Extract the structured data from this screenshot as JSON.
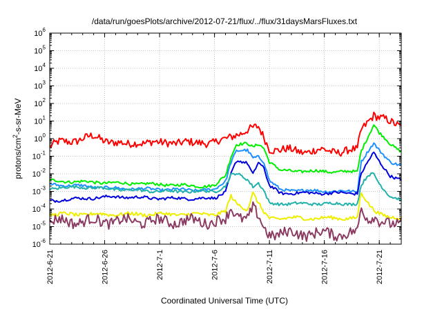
{
  "chart_data": {
    "type": "line",
    "title": "/data/run/goesPlots/archive/2012-07-21/flux/../flux/31daysMarsFluxes.txt",
    "xlabel": "Coordinated Universal Time (UTC)",
    "ylabel_base": "protons/cm",
    "ylabel_sup": "2",
    "ylabel_rest": "-s-sr-MeV",
    "y_scale": "log",
    "ylim": [
      1e-06,
      1000000.0
    ],
    "y_ticks": [
      {
        "value": 1e-06,
        "base": "10",
        "exp": "-6"
      },
      {
        "value": 1e-05,
        "base": "10",
        "exp": "-5"
      },
      {
        "value": 0.0001,
        "base": "10",
        "exp": "-4"
      },
      {
        "value": 0.001,
        "base": "10",
        "exp": "-3"
      },
      {
        "value": 0.01,
        "base": "10",
        "exp": "-2"
      },
      {
        "value": 0.1,
        "base": "10",
        "exp": "-1"
      },
      {
        "value": 1,
        "base": "10",
        "exp": "0"
      },
      {
        "value": 10,
        "base": "10",
        "exp": "1"
      },
      {
        "value": 100,
        "base": "10",
        "exp": "2"
      },
      {
        "value": 1000,
        "base": "10",
        "exp": "3"
      },
      {
        "value": 10000,
        "base": "10",
        "exp": "4"
      },
      {
        "value": 100000,
        "base": "10",
        "exp": "5"
      },
      {
        "value": 1000000,
        "base": "10",
        "exp": "6"
      }
    ],
    "xlim": [
      "2012-06-21",
      "2012-07-23"
    ],
    "x_ticks": [
      "2012-6-21",
      "2012-6-26",
      "2012-7-1",
      "2012-7-6",
      "2012-7-11",
      "2012-7-16",
      "2012-7-21"
    ],
    "grid": true,
    "series": [
      {
        "color": "#ff0000",
        "noise": 0.22,
        "points": [
          [
            "2012-06-21",
            0.35
          ],
          [
            "2012-06-22",
            0.6
          ],
          [
            "2012-06-23",
            0.8
          ],
          [
            "2012-06-24",
            1.0
          ],
          [
            "2012-06-25",
            1.2
          ],
          [
            "2012-06-26",
            0.9
          ],
          [
            "2012-06-27",
            0.6
          ],
          [
            "2012-06-28",
            0.4
          ],
          [
            "2012-06-29",
            0.7
          ],
          [
            "2012-06-30",
            0.6
          ],
          [
            "2012-07-01",
            0.5
          ],
          [
            "2012-07-02",
            0.7
          ],
          [
            "2012-07-03",
            0.6
          ],
          [
            "2012-07-04",
            0.5
          ],
          [
            "2012-07-05",
            0.7
          ],
          [
            "2012-07-06",
            0.6
          ],
          [
            "2012-07-07",
            0.8
          ],
          [
            "2012-07-08",
            2.0
          ],
          [
            "2012-07-09",
            3.0
          ],
          [
            "2012-07-10",
            4.0
          ],
          [
            "2012-07-10T12:00",
            1.2
          ],
          [
            "2012-07-11",
            0.3
          ],
          [
            "2012-07-12",
            0.22
          ],
          [
            "2012-07-14",
            0.2
          ],
          [
            "2012-07-16",
            0.2
          ],
          [
            "2012-07-18",
            0.2
          ],
          [
            "2012-07-19",
            0.2
          ],
          [
            "2012-07-19T08:00",
            3.0
          ],
          [
            "2012-07-20",
            12.0
          ],
          [
            "2012-07-20T12:00",
            25.0
          ],
          [
            "2012-07-21",
            15.0
          ],
          [
            "2012-07-22",
            8.0
          ],
          [
            "2012-07-23",
            6.0
          ]
        ]
      },
      {
        "color": "#00ee00",
        "noise": 0.08,
        "points": [
          [
            "2012-06-21",
            0.004
          ],
          [
            "2012-06-24",
            0.0035
          ],
          [
            "2012-06-27",
            0.003
          ],
          [
            "2012-07-01",
            0.0025
          ],
          [
            "2012-07-05",
            0.002
          ],
          [
            "2012-07-06",
            0.002
          ],
          [
            "2012-07-07",
            0.008
          ],
          [
            "2012-07-07T12:00",
            0.1
          ],
          [
            "2012-07-08",
            0.5
          ],
          [
            "2012-07-09",
            0.5
          ],
          [
            "2012-07-09T12:00",
            0.3
          ],
          [
            "2012-07-10",
            0.5
          ],
          [
            "2012-07-10T12:00",
            0.3
          ],
          [
            "2012-07-11",
            0.05
          ],
          [
            "2012-07-12",
            0.015
          ],
          [
            "2012-07-18",
            0.013
          ],
          [
            "2012-07-19",
            0.013
          ],
          [
            "2012-07-19T08:00",
            0.2
          ],
          [
            "2012-07-20",
            1.5
          ],
          [
            "2012-07-20T12:00",
            6.0
          ],
          [
            "2012-07-21",
            2.0
          ],
          [
            "2012-07-22",
            0.5
          ],
          [
            "2012-07-23",
            0.2
          ]
        ]
      },
      {
        "color": "#1e90ff",
        "noise": 0.08,
        "points": [
          [
            "2012-06-21",
            0.0025
          ],
          [
            "2012-06-24",
            0.002
          ],
          [
            "2012-06-27",
            0.0015
          ],
          [
            "2012-07-01",
            0.0013
          ],
          [
            "2012-07-05",
            0.0012
          ],
          [
            "2012-07-06",
            0.0012
          ],
          [
            "2012-07-07",
            0.004
          ],
          [
            "2012-07-07T12:00",
            0.05
          ],
          [
            "2012-07-08",
            0.2
          ],
          [
            "2012-07-09",
            0.2
          ],
          [
            "2012-07-09T12:00",
            0.08
          ],
          [
            "2012-07-10",
            0.1
          ],
          [
            "2012-07-10T12:00",
            0.05
          ],
          [
            "2012-07-11",
            0.004
          ],
          [
            "2012-07-12",
            0.0012
          ],
          [
            "2012-07-18",
            0.001
          ],
          [
            "2012-07-19",
            0.001
          ],
          [
            "2012-07-19T08:00",
            0.05
          ],
          [
            "2012-07-20",
            0.2
          ],
          [
            "2012-07-20T12:00",
            0.5
          ],
          [
            "2012-07-21",
            0.2
          ],
          [
            "2012-07-22",
            0.05
          ],
          [
            "2012-07-23",
            0.03
          ]
        ]
      },
      {
        "color": "#0000dd",
        "noise": 0.08,
        "points": [
          [
            "2012-06-21",
            0.0003
          ],
          [
            "2012-06-24",
            0.0004
          ],
          [
            "2012-06-27",
            0.0005
          ],
          [
            "2012-07-01",
            0.0004
          ],
          [
            "2012-07-05",
            0.0004
          ],
          [
            "2012-07-06",
            0.0004
          ],
          [
            "2012-07-07",
            0.001
          ],
          [
            "2012-07-07T12:00",
            0.01
          ],
          [
            "2012-07-08",
            0.05
          ],
          [
            "2012-07-09",
            0.04
          ],
          [
            "2012-07-09T12:00",
            0.01
          ],
          [
            "2012-07-10",
            0.05
          ],
          [
            "2012-07-10T12:00",
            0.02
          ],
          [
            "2012-07-11",
            0.002
          ],
          [
            "2012-07-12",
            0.0008
          ],
          [
            "2012-07-18",
            0.0008
          ],
          [
            "2012-07-19",
            0.0008
          ],
          [
            "2012-07-19T08:00",
            0.01
          ],
          [
            "2012-07-20",
            0.05
          ],
          [
            "2012-07-20T12:00",
            0.15
          ],
          [
            "2012-07-21",
            0.05
          ],
          [
            "2012-07-22",
            0.008
          ],
          [
            "2012-07-23",
            0.004
          ]
        ]
      },
      {
        "color": "#20b2aa",
        "noise": 0.08,
        "points": [
          [
            "2012-06-21",
            0.0015
          ],
          [
            "2012-06-24",
            0.0018
          ],
          [
            "2012-06-27",
            0.0013
          ],
          [
            "2012-07-01",
            0.001
          ],
          [
            "2012-07-05",
            0.001
          ],
          [
            "2012-07-06",
            0.001
          ],
          [
            "2012-07-07",
            0.002
          ],
          [
            "2012-07-07T12:00",
            0.008
          ],
          [
            "2012-07-08",
            0.01
          ],
          [
            "2012-07-09",
            0.005
          ],
          [
            "2012-07-09T12:00",
            0.002
          ],
          [
            "2012-07-10",
            0.003
          ],
          [
            "2012-07-10T12:00",
            0.001
          ],
          [
            "2012-07-11",
            0.0002
          ],
          [
            "2012-07-12",
            0.0002
          ],
          [
            "2012-07-18",
            0.0002
          ],
          [
            "2012-07-19",
            0.0002
          ],
          [
            "2012-07-19T08:00",
            0.002
          ],
          [
            "2012-07-20",
            0.008
          ],
          [
            "2012-07-20T12:00",
            0.01
          ],
          [
            "2012-07-21",
            0.003
          ],
          [
            "2012-07-22",
            0.0005
          ],
          [
            "2012-07-23",
            0.0003
          ]
        ]
      },
      {
        "color": "#eeee00",
        "noise": 0.1,
        "points": [
          [
            "2012-06-21",
            5e-05
          ],
          [
            "2012-06-24",
            5e-05
          ],
          [
            "2012-06-27",
            5e-05
          ],
          [
            "2012-07-01",
            5e-05
          ],
          [
            "2012-07-05",
            5e-05
          ],
          [
            "2012-07-06",
            5e-05
          ],
          [
            "2012-07-07",
            7e-05
          ],
          [
            "2012-07-07T12:00",
            0.0005
          ],
          [
            "2012-07-08",
            0.0002
          ],
          [
            "2012-07-09",
            0.0001
          ],
          [
            "2012-07-09T12:00",
            0.0008
          ],
          [
            "2012-07-10",
            0.0002
          ],
          [
            "2012-07-10T12:00",
            6e-05
          ],
          [
            "2012-07-11",
            3e-05
          ],
          [
            "2012-07-12",
            3e-05
          ],
          [
            "2012-07-18",
            3e-05
          ],
          [
            "2012-07-19",
            3e-05
          ],
          [
            "2012-07-19T08:00",
            0.0008
          ],
          [
            "2012-07-20",
            0.0002
          ],
          [
            "2012-07-20T12:00",
            0.0001
          ],
          [
            "2012-07-21",
            6e-05
          ],
          [
            "2012-07-22",
            3e-05
          ],
          [
            "2012-07-23",
            3e-05
          ]
        ]
      },
      {
        "color": "#8b3a62",
        "noise": 0.3,
        "points": [
          [
            "2012-06-21",
            2e-05
          ],
          [
            "2012-06-24",
            2e-05
          ],
          [
            "2012-06-27",
            2e-05
          ],
          [
            "2012-07-01",
            2e-05
          ],
          [
            "2012-07-05",
            2e-05
          ],
          [
            "2012-07-06",
            2e-05
          ],
          [
            "2012-07-07",
            2e-05
          ],
          [
            "2012-07-07T12:00",
            0.0001
          ],
          [
            "2012-07-08",
            5e-05
          ],
          [
            "2012-07-09",
            3e-05
          ],
          [
            "2012-07-09T12:00",
            0.0001
          ],
          [
            "2012-07-10",
            3e-05
          ],
          [
            "2012-07-10T12:00",
            8e-06
          ],
          [
            "2012-07-11",
            4e-06
          ],
          [
            "2012-07-12",
            4e-06
          ],
          [
            "2012-07-18",
            4e-06
          ],
          [
            "2012-07-19",
            4e-06
          ],
          [
            "2012-07-19T08:00",
            0.0001
          ],
          [
            "2012-07-20",
            3e-05
          ],
          [
            "2012-07-20T12:00",
            5e-05
          ],
          [
            "2012-07-21",
            2e-05
          ],
          [
            "2012-07-22",
            1e-05
          ],
          [
            "2012-07-23",
            2e-05
          ]
        ]
      }
    ]
  }
}
